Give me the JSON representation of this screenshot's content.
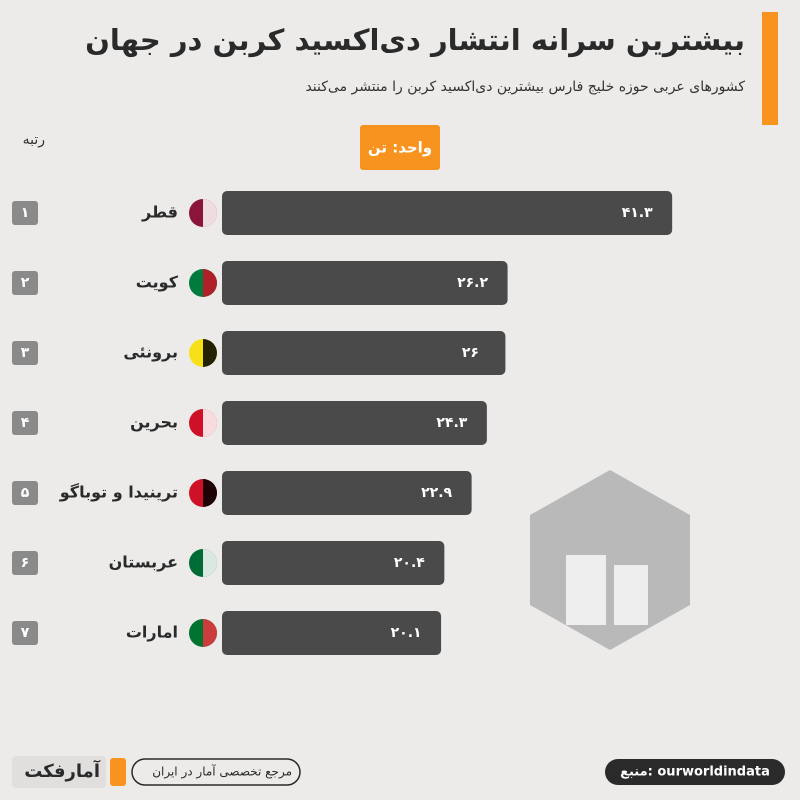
{
  "chart_data": {
    "type": "bar",
    "title": "بیشترین سرانه انتشار دی‌اکسید کربن در جهان",
    "subtitle": "کشورهای عربی حوزه خلیج فارس بیشترین دی‌اکسید کربن را منتشر می‌کنند",
    "rank_label": "رتبه",
    "unit": "واحد: تن",
    "categories": [
      "قطر",
      "کویت",
      "برونئی",
      "بحرین",
      "ترینیدا و توباگو",
      "عربستان",
      "امارات"
    ],
    "ranks": [
      "۱",
      "۲",
      "۳",
      "۴",
      "۵",
      "۶",
      "۷"
    ],
    "values": [
      41.3,
      26.2,
      26,
      24.3,
      22.9,
      20.4,
      20.1
    ],
    "value_labels": [
      "۴۱.۳",
      "۲۶.۲",
      "۲۶",
      "۲۴.۳",
      "۲۲.۹",
      "۲۰.۴",
      "۲۰.۱"
    ],
    "color": "#4a4a4a",
    "brand": "آمارفکت",
    "tagline": "مرجع تخصصی آمار در ایران",
    "source": "منبع: ourworldindata"
  }
}
